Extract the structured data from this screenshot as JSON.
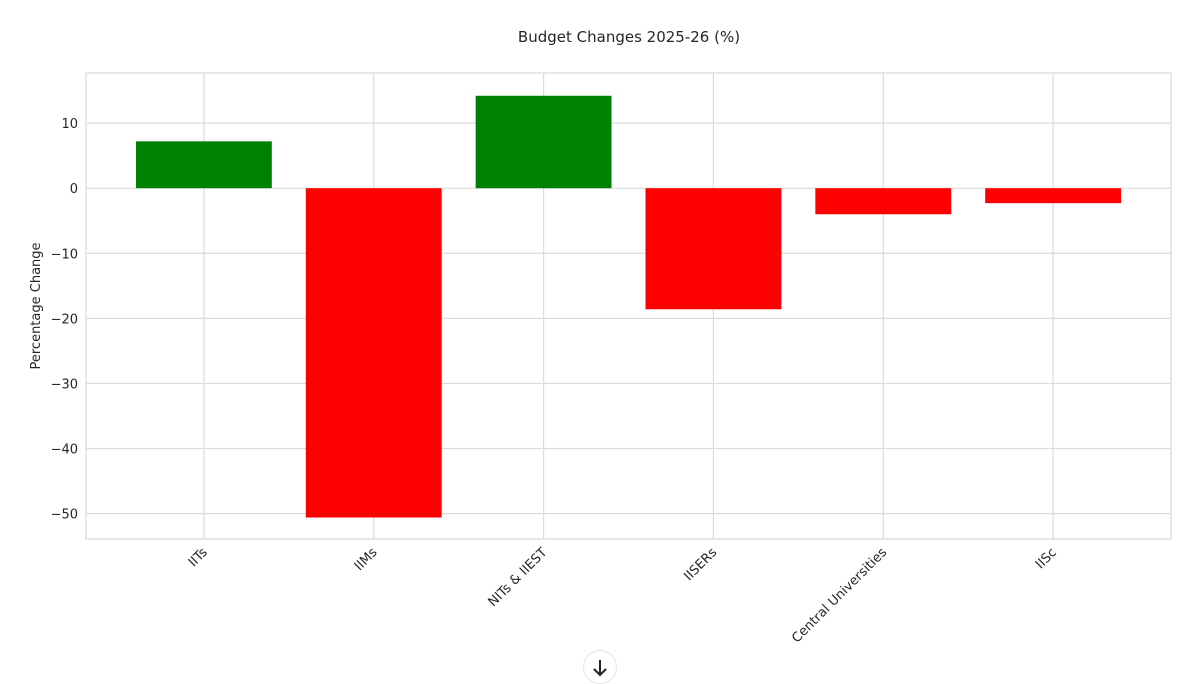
{
  "chart_data": {
    "type": "bar",
    "title": "Budget Changes 2025-26 (%)",
    "xlabel": "",
    "ylabel": "Percentage Change",
    "categories": [
      "IITs",
      "IIMs",
      "NITs & IIEST",
      "IISERs",
      "Central Universities",
      "IISc"
    ],
    "values": [
      7.2,
      -50.6,
      14.2,
      -18.6,
      -4.0,
      -2.3
    ],
    "ylim": [
      -53.9,
      17.7
    ],
    "yticks": [
      10,
      0,
      -10,
      -20,
      -30,
      -40,
      -50
    ],
    "ytick_labels": [
      "10",
      "0",
      "−10",
      "−20",
      "−30",
      "−40",
      "−50"
    ],
    "grid": true,
    "colors": {
      "positive": "#008000",
      "negative": "#ff0000"
    }
  },
  "scroll_button": {
    "icon": "arrow-down-icon"
  }
}
